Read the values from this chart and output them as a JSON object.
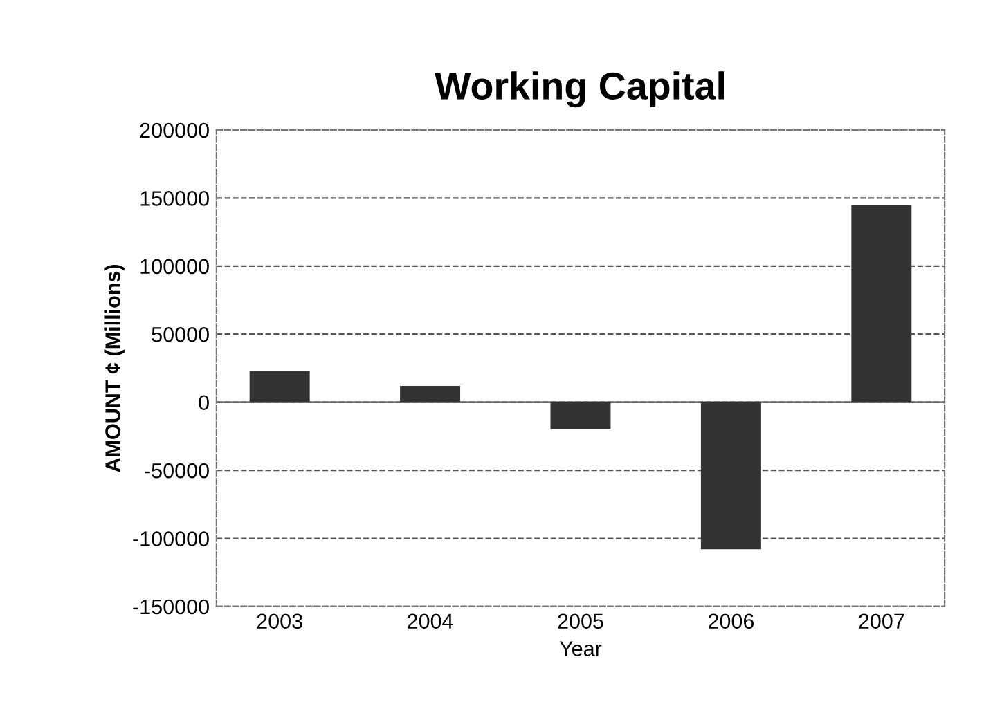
{
  "chart_data": {
    "type": "bar",
    "title": "Working Capital",
    "xlabel": "Year",
    "ylabel": "AMOUNT ¢ (Millions)",
    "categories": [
      "2003",
      "2004",
      "2005",
      "2006",
      "2007"
    ],
    "values": [
      23000,
      12000,
      -20000,
      -108000,
      145000
    ],
    "color": "#333333",
    "ylim": [
      -150000,
      200000
    ],
    "yticks": [
      -150000,
      -100000,
      -50000,
      0,
      50000,
      100000,
      150000,
      200000
    ],
    "grid": "y"
  }
}
